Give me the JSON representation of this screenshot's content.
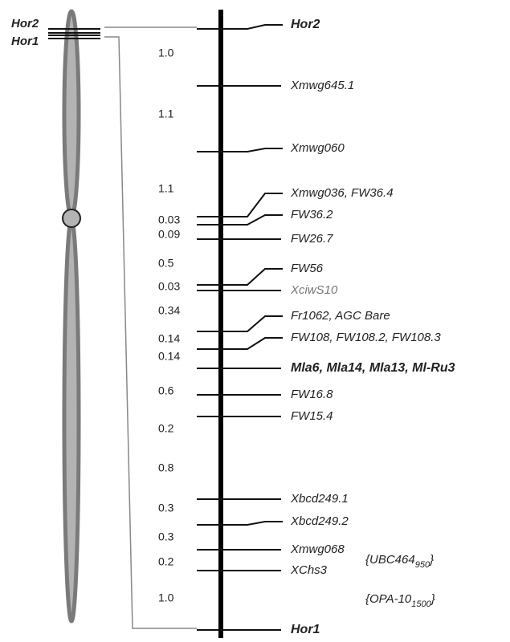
{
  "chromosome": {
    "top_label": "Hor2",
    "bottom_label": "Hor1"
  },
  "markers": [
    {
      "label": "Hor2",
      "bold": true
    },
    {
      "label": "Xmwg645.1"
    },
    {
      "label": "Xmwg060"
    },
    {
      "label": "Xmwg036, FW36.4"
    },
    {
      "label": "FW36.2"
    },
    {
      "label": "FW26.7"
    },
    {
      "label": "FW56"
    },
    {
      "label": "XciwS10",
      "color": "#777777"
    },
    {
      "label": "Fr1062, AGC Bare"
    },
    {
      "label": "FW108, FW108.2, FW108.3"
    },
    {
      "label": "Mla6, Mla14, Mla13, Ml-Ru3",
      "bold": true
    },
    {
      "label": "FW16.8"
    },
    {
      "label": "FW15.4"
    },
    {
      "label": "Xbcd249.1"
    },
    {
      "label": "Xbcd249.2"
    },
    {
      "label": "Xmwg068"
    },
    {
      "label": "XChs3"
    },
    {
      "label": "Hor1",
      "bold": true
    }
  ],
  "distances": [
    "1.0",
    "1.1",
    "1.1",
    "0.03",
    "0.09",
    "0.5",
    "0.03",
    "0.34",
    "0.14",
    "0.14",
    "0.6",
    "0.2",
    "0.8",
    "0.3",
    "0.3",
    "0.2",
    "1.0"
  ],
  "brackets": [
    {
      "prefix": "{UBC464",
      "sub": "950",
      "suffix": "}"
    },
    {
      "prefix": "{OPA-10",
      "sub": "1500",
      "suffix": "}"
    }
  ]
}
